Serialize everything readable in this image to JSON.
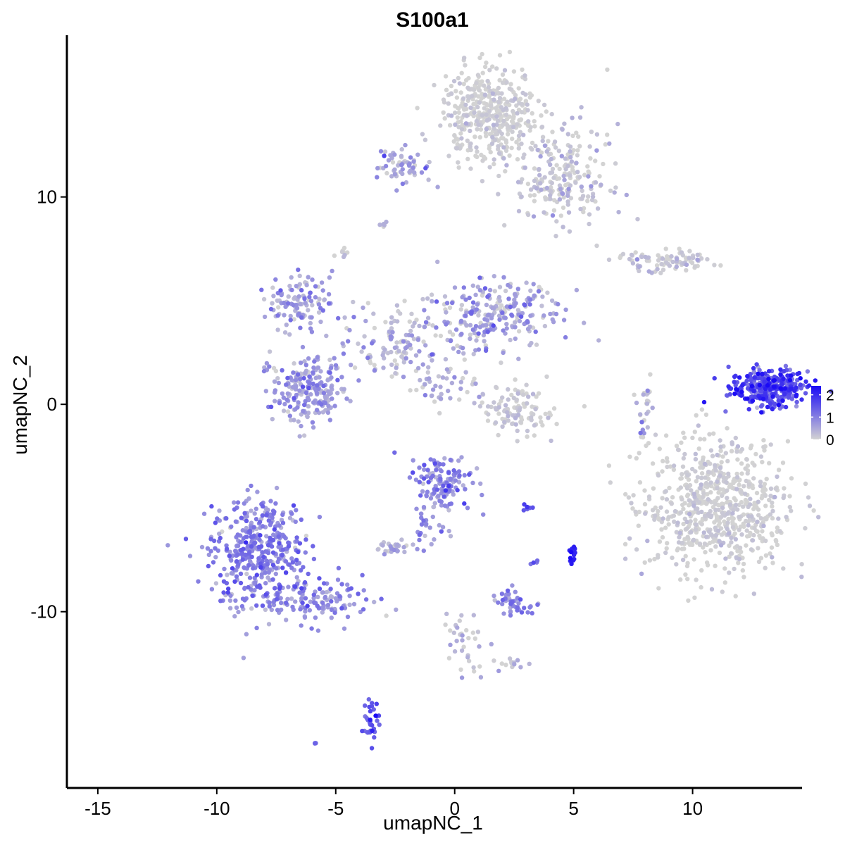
{
  "chart_data": {
    "type": "scatter",
    "title": "S100a1",
    "xlabel": "umapNC_1",
    "ylabel": "umapNC_2",
    "xlim": [
      -16.3,
      14.6
    ],
    "ylim": [
      -18.5,
      17.8
    ],
    "x_ticks": [
      -15,
      -10,
      -5,
      0,
      5,
      10
    ],
    "x_tick_labels": [
      "-15",
      "-10",
      "-5",
      "0",
      "5",
      "10"
    ],
    "y_ticks": [
      -10,
      0,
      10
    ],
    "y_tick_labels": [
      "-10",
      "0",
      "10"
    ],
    "color_scale": {
      "low": "#d3d3d3",
      "high": "#1a0af5",
      "min": 0,
      "max": 2.4,
      "ticks": [
        0,
        1,
        2
      ],
      "tick_labels": [
        "0",
        "1",
        "2"
      ],
      "legend_position": "right"
    },
    "grid": false,
    "point_note": "approximate cluster groups of single-cell points; expression read from color",
    "clusters": [
      {
        "id": "c1",
        "cx": 13.2,
        "cy": 0.8,
        "sx": 0.8,
        "sy": 0.45,
        "n": 320,
        "expr_mean": 1.6,
        "expr_sd": 0.45
      },
      {
        "id": "c2",
        "cx": -8.3,
        "cy": -7.0,
        "sx": 1.0,
        "sy": 1.3,
        "n": 420,
        "expr_mean": 0.9,
        "expr_sd": 0.35
      },
      {
        "id": "c3",
        "cx": -6.0,
        "cy": -9.5,
        "sx": 1.3,
        "sy": 0.55,
        "n": 140,
        "expr_mean": 0.8,
        "expr_sd": 0.35
      },
      {
        "id": "c4",
        "cx": 11.0,
        "cy": -5.0,
        "sx": 1.5,
        "sy": 1.6,
        "n": 700,
        "expr_mean": 0.0,
        "expr_sd": 0.15
      },
      {
        "id": "c5",
        "cx": 1.5,
        "cy": 14.0,
        "sx": 1.0,
        "sy": 1.1,
        "n": 420,
        "expr_mean": 0.0,
        "expr_sd": 0.15
      },
      {
        "id": "c6",
        "cx": 4.5,
        "cy": 11.0,
        "sx": 1.0,
        "sy": 1.2,
        "n": 220,
        "expr_mean": 0.1,
        "expr_sd": 0.25
      },
      {
        "id": "c7",
        "cx": -6.2,
        "cy": 0.7,
        "sx": 0.75,
        "sy": 0.8,
        "n": 220,
        "expr_mean": 0.6,
        "expr_sd": 0.35
      },
      {
        "id": "c8",
        "cx": -6.5,
        "cy": 5.0,
        "sx": 0.7,
        "sy": 0.6,
        "n": 110,
        "expr_mean": 0.6,
        "expr_sd": 0.4
      },
      {
        "id": "c9",
        "cx": -2.5,
        "cy": 3.0,
        "sx": 1.2,
        "sy": 1.0,
        "n": 120,
        "expr_mean": 0.3,
        "expr_sd": 0.35
      },
      {
        "id": "c10",
        "cx": 1.5,
        "cy": 4.3,
        "sx": 1.5,
        "sy": 0.9,
        "n": 260,
        "expr_mean": 0.5,
        "expr_sd": 0.4
      },
      {
        "id": "c11",
        "cx": -0.5,
        "cy": -3.8,
        "sx": 0.6,
        "sy": 0.7,
        "n": 130,
        "expr_mean": 0.9,
        "expr_sd": 0.4
      },
      {
        "id": "c12",
        "cx": 2.6,
        "cy": -0.3,
        "sx": 0.8,
        "sy": 0.6,
        "n": 110,
        "expr_mean": 0.05,
        "expr_sd": 0.15
      },
      {
        "id": "c13",
        "cx": -2.3,
        "cy": 11.5,
        "sx": 0.7,
        "sy": 0.4,
        "n": 60,
        "expr_mean": 0.4,
        "expr_sd": 0.4
      },
      {
        "id": "c14",
        "cx": 8.8,
        "cy": 6.9,
        "sx": 1.0,
        "sy": 0.25,
        "n": 90,
        "expr_mean": 0.1,
        "expr_sd": 0.2
      },
      {
        "id": "c15",
        "cx": 2.5,
        "cy": -9.5,
        "sx": 0.45,
        "sy": 0.35,
        "n": 45,
        "expr_mean": 0.9,
        "expr_sd": 0.3
      },
      {
        "id": "c16",
        "cx": -3.5,
        "cy": -15.2,
        "sx": 0.2,
        "sy": 0.45,
        "n": 35,
        "expr_mean": 1.5,
        "expr_sd": 0.35
      },
      {
        "id": "c17",
        "cx": -2.6,
        "cy": -6.9,
        "sx": 0.35,
        "sy": 0.2,
        "n": 25,
        "expr_mean": 0.4,
        "expr_sd": 0.3
      },
      {
        "id": "c18",
        "cx": 5.0,
        "cy": -7.3,
        "sx": 0.12,
        "sy": 0.2,
        "n": 14,
        "expr_mean": 2.2,
        "expr_sd": 0.15
      },
      {
        "id": "c19",
        "cx": 8.0,
        "cy": -0.5,
        "sx": 0.15,
        "sy": 0.8,
        "n": 25,
        "expr_mean": 0.3,
        "expr_sd": 0.35
      },
      {
        "id": "c20",
        "cx": 0.3,
        "cy": -11.5,
        "sx": 0.5,
        "sy": 0.9,
        "n": 35,
        "expr_mean": 0.2,
        "expr_sd": 0.3
      },
      {
        "id": "c21",
        "cx": -1.2,
        "cy": -6.0,
        "sx": 0.4,
        "sy": 0.6,
        "n": 25,
        "expr_mean": 0.8,
        "expr_sd": 0.3
      },
      {
        "id": "c22",
        "cx": 2.3,
        "cy": -12.5,
        "sx": 0.4,
        "sy": 0.15,
        "n": 15,
        "expr_mean": 0.3,
        "expr_sd": 0.3
      },
      {
        "id": "c23",
        "cx": -0.7,
        "cy": 1.0,
        "sx": 0.9,
        "sy": 0.5,
        "n": 40,
        "expr_mean": 0.3,
        "expr_sd": 0.3
      },
      {
        "id": "c24",
        "cx": 3.0,
        "cy": -5.0,
        "sx": 0.15,
        "sy": 0.1,
        "n": 8,
        "expr_mean": 1.6,
        "expr_sd": 0.2
      },
      {
        "id": "c25",
        "cx": -5.8,
        "cy": -16.3,
        "sx": 0.05,
        "sy": 0.05,
        "n": 3,
        "expr_mean": 1.2,
        "expr_sd": 0.1
      },
      {
        "id": "c26",
        "cx": -3.0,
        "cy": 8.7,
        "sx": 0.1,
        "sy": 0.1,
        "n": 5,
        "expr_mean": 0.5,
        "expr_sd": 0.3
      },
      {
        "id": "c27",
        "cx": -4.7,
        "cy": 7.3,
        "sx": 0.15,
        "sy": 0.2,
        "n": 8,
        "expr_mean": 0.1,
        "expr_sd": 0.2
      },
      {
        "id": "c28",
        "cx": 3.4,
        "cy": -7.6,
        "sx": 0.08,
        "sy": 0.08,
        "n": 4,
        "expr_mean": 1.4,
        "expr_sd": 0.2
      }
    ]
  }
}
